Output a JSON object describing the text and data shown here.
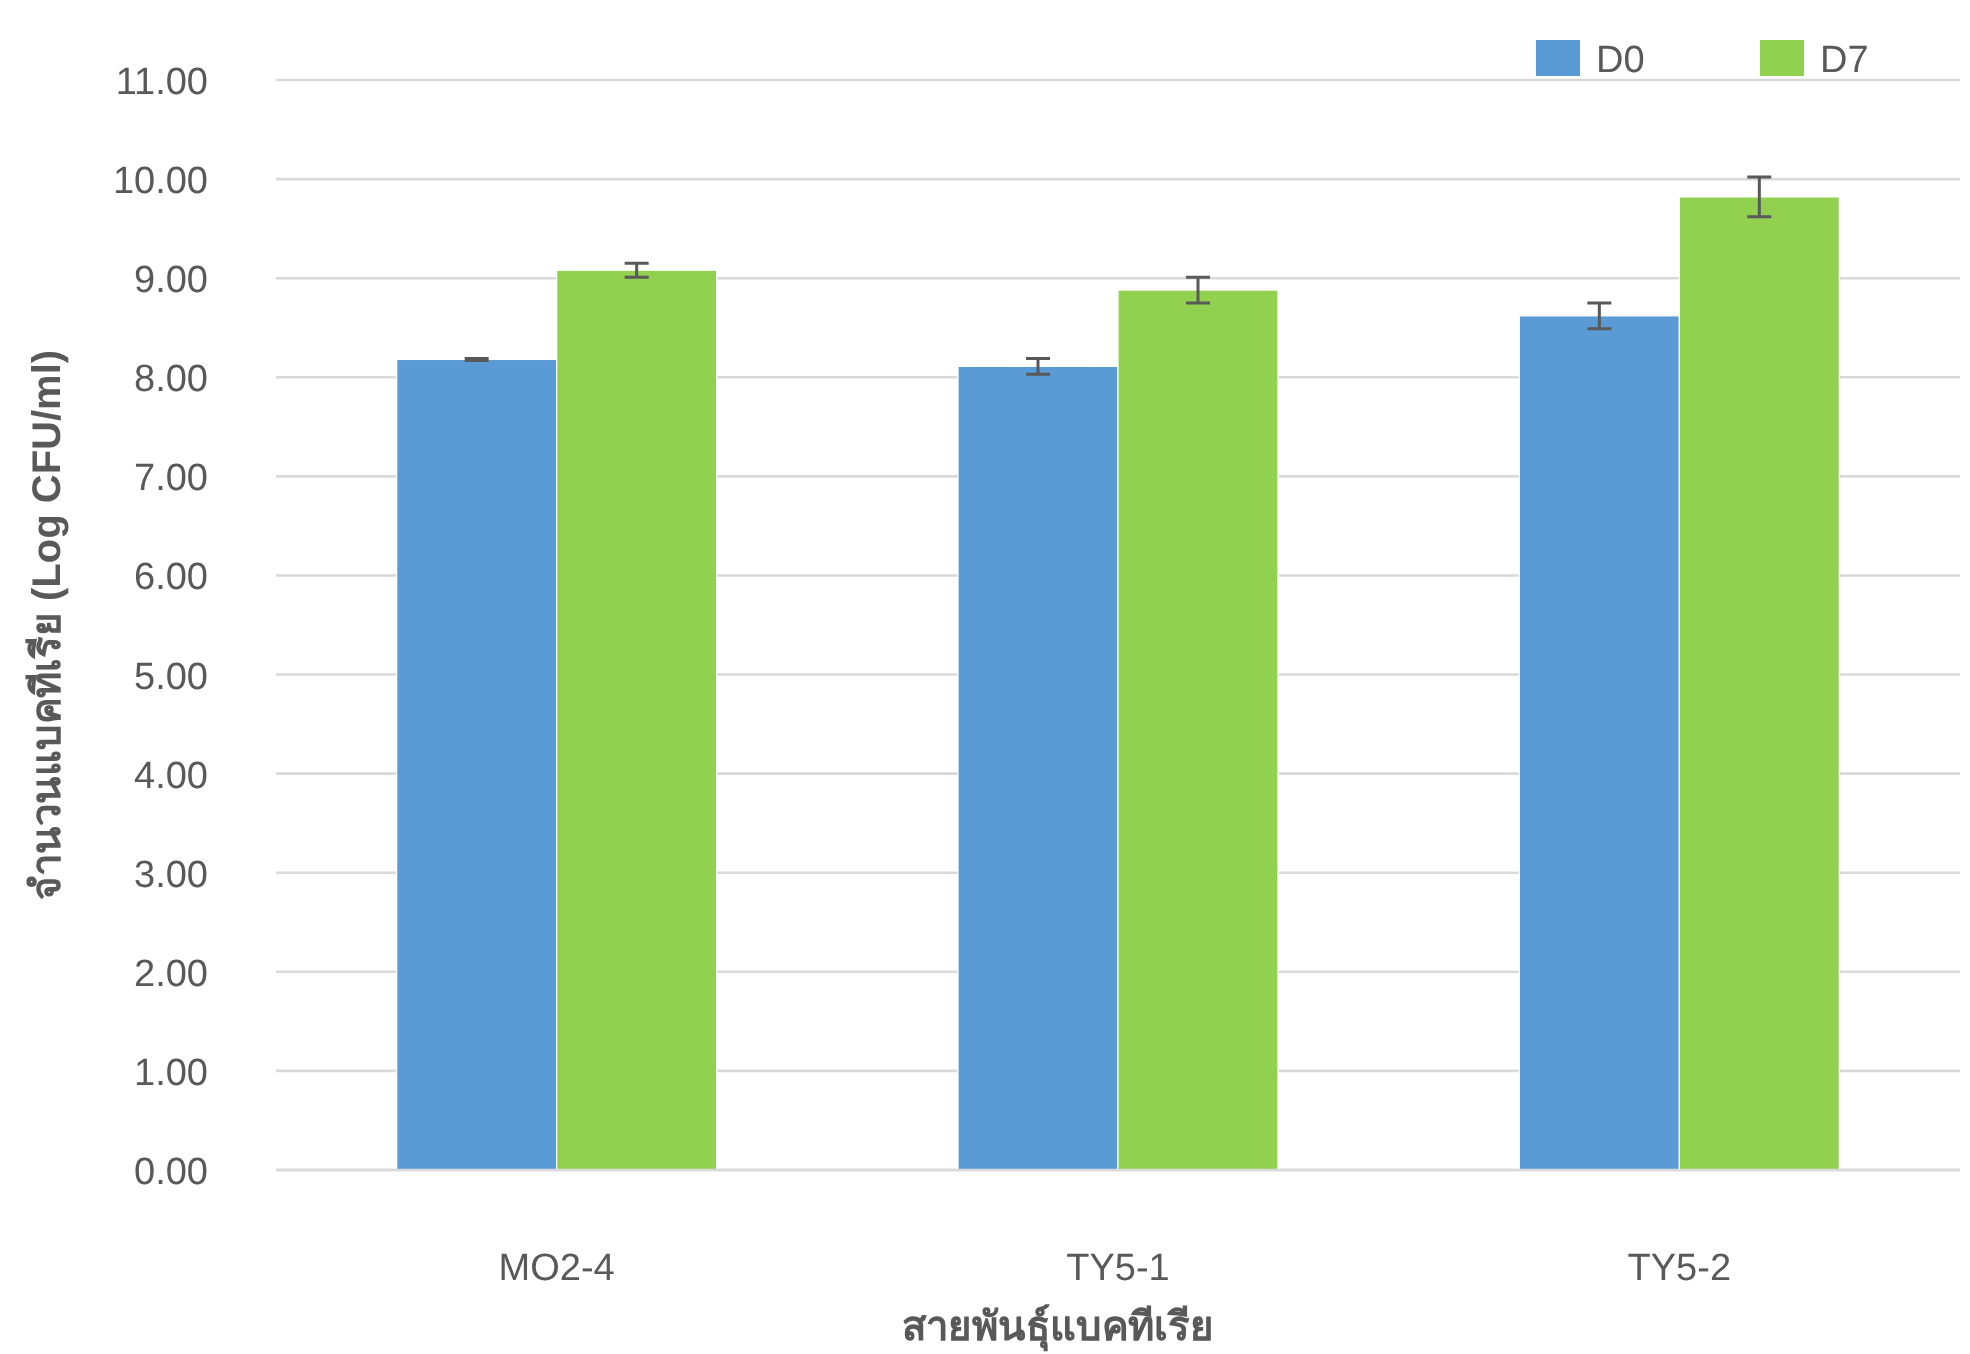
{
  "chart_data": {
    "type": "bar",
    "xlabel": "สายพันธุ์แบคทีเรีย",
    "ylabel": "จำนวนแบคทีเรีย (Log CFU/ml)",
    "categories": [
      "MO2-4",
      "TY5-1",
      "TY5-2"
    ],
    "series": [
      {
        "name": "D0",
        "color": "#5b9bd5",
        "values": [
          8.18,
          8.11,
          8.62
        ],
        "errors": [
          0.01,
          0.08,
          0.13
        ]
      },
      {
        "name": "D7",
        "color": "#92d050",
        "values": [
          9.08,
          8.88,
          9.82
        ],
        "errors": [
          0.07,
          0.13,
          0.2
        ]
      }
    ],
    "ylim": [
      0,
      11
    ],
    "yticks": [
      {
        "value": 0,
        "label": "0.00"
      },
      {
        "value": 1,
        "label": "1.00"
      },
      {
        "value": 2,
        "label": "2.00"
      },
      {
        "value": 3,
        "label": "3.00"
      },
      {
        "value": 4,
        "label": "4.00"
      },
      {
        "value": 5,
        "label": "5.00"
      },
      {
        "value": 6,
        "label": "6.00"
      },
      {
        "value": 7,
        "label": "7.00"
      },
      {
        "value": 8,
        "label": "8.00"
      },
      {
        "value": 9,
        "label": "9.00"
      },
      {
        "value": 10,
        "label": "10.00"
      },
      {
        "value": 11,
        "label": "11.00"
      }
    ],
    "grid": "y",
    "legend": "top right"
  }
}
